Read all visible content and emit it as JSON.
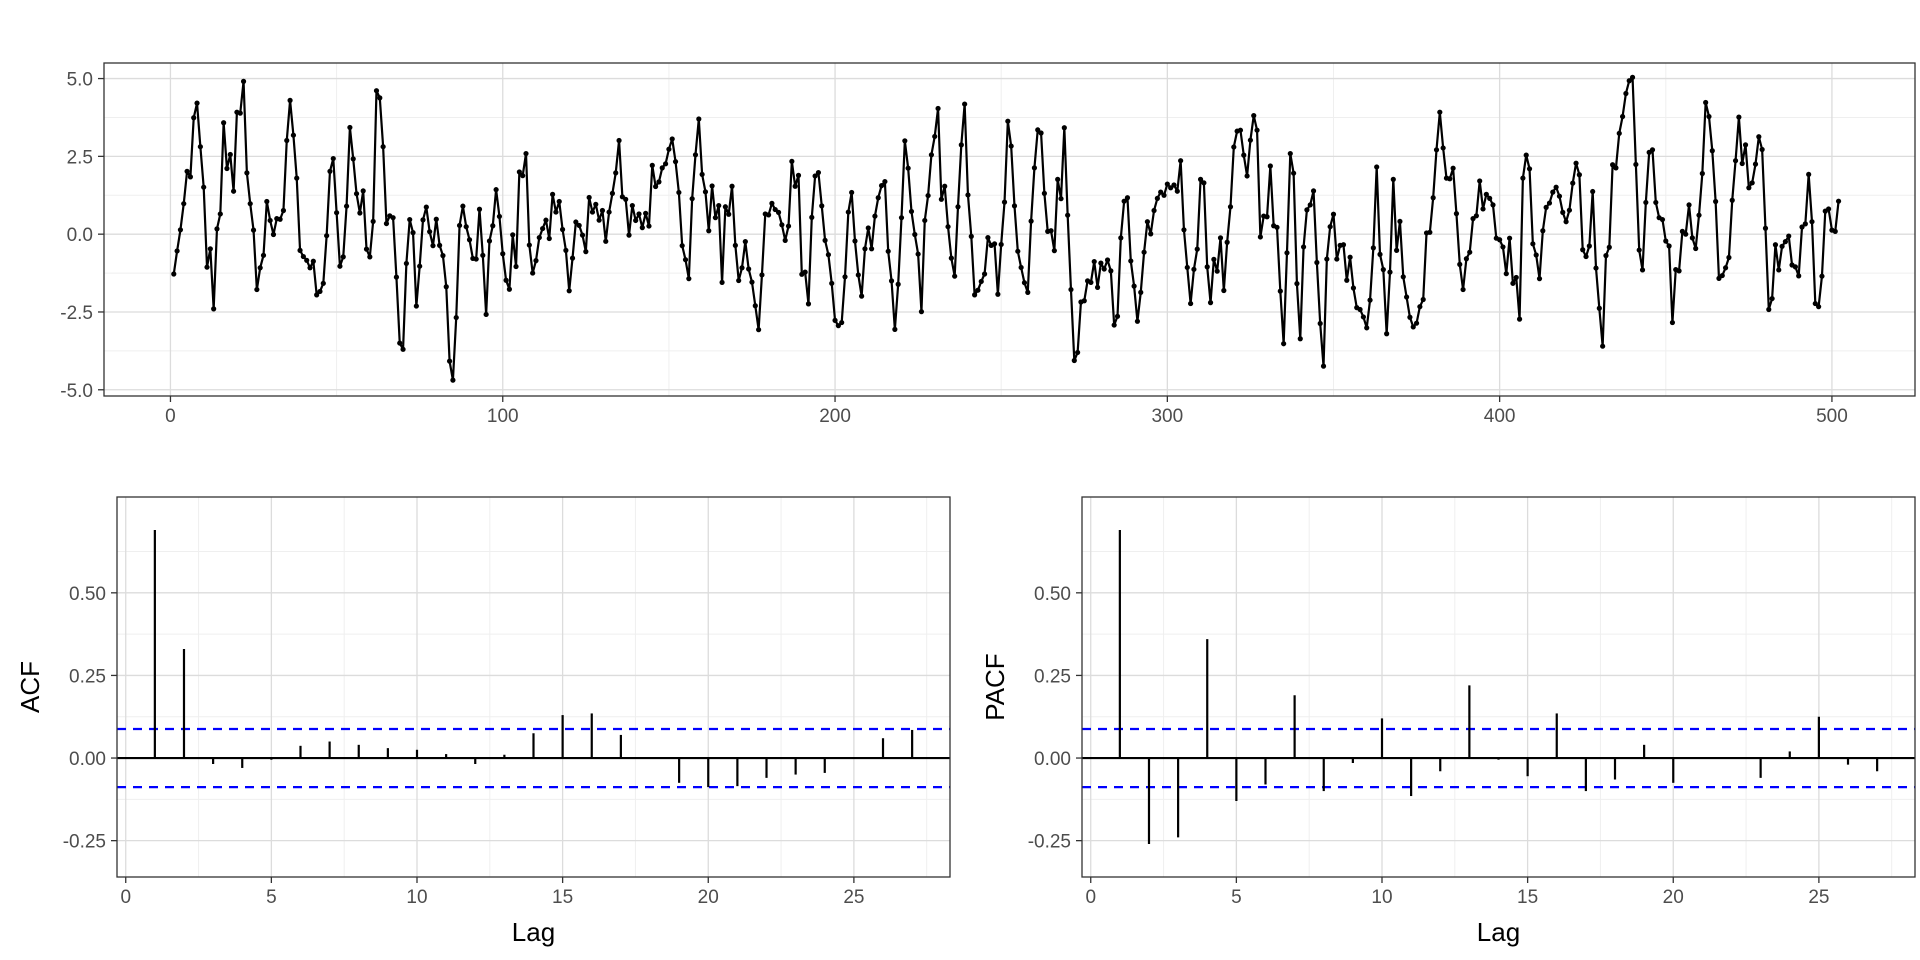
{
  "colors": {
    "grid_major": "#dcdcdc",
    "grid_minor": "#efefef",
    "line": "#000000",
    "ci": "#0000ff",
    "panel_border": "#333333"
  },
  "chart_data": [
    {
      "type": "line",
      "panel": "time-series",
      "title": "",
      "xlabel": "",
      "ylabel": "",
      "xlim": [
        -20,
        525
      ],
      "ylim": [
        -5.2,
        5.5
      ],
      "xticks": [
        "0",
        "100",
        "200",
        "300",
        "400",
        "500"
      ],
      "yticks": [
        "5.0",
        "2.5",
        "0.0",
        "-2.5",
        "-5.0"
      ],
      "grid": true,
      "markers": true,
      "x_start": 1,
      "x_step": 1,
      "y": [
        -1.28,
        -0.54,
        0.14,
        0.98,
        2.02,
        1.84,
        3.74,
        4.21,
        2.81,
        1.51,
        -1.06,
        -0.47,
        -2.4,
        0.17,
        0.65,
        3.58,
        2.11,
        2.56,
        1.38,
        3.92,
        3.89,
        4.91,
        1.97,
        0.98,
        0.13,
        -1.78,
        -1.08,
        -0.68,
        1.05,
        0.44,
        -0.01,
        0.5,
        0.48,
        0.76,
        3.01,
        4.3,
        3.18,
        1.8,
        -0.52,
        -0.72,
        -0.84,
        -1.08,
        -0.87,
        -1.95,
        -1.84,
        -1.58,
        -0.05,
        2.02,
        2.43,
        0.69,
        -1.03,
        -0.73,
        0.9,
        3.43,
        2.42,
        1.3,
        0.68,
        1.39,
        -0.48,
        -0.73,
        0.41,
        4.61,
        4.38,
        2.81,
        0.34,
        0.59,
        0.53,
        -1.38,
        -3.5,
        -3.7,
        -0.94,
        0.47,
        0.05,
        -2.31,
        -1.03,
        0.46,
        0.87,
        0.08,
        -0.37,
        0.48,
        -0.36,
        -0.69,
        -1.69,
        -4.08,
        -4.69,
        -2.68,
        0.28,
        0.9,
        0.24,
        -0.18,
        -0.78,
        -0.8,
        0.8,
        -0.68,
        -2.58,
        -0.22,
        0.27,
        1.43,
        0.57,
        -0.63,
        -1.48,
        -1.77,
        -0.02,
        -1.04,
        2.0,
        1.88,
        2.59,
        -0.35,
        -1.25,
        -0.85,
        -0.11,
        0.18,
        0.45,
        -0.14,
        1.28,
        0.71,
        1.05,
        0.15,
        -0.52,
        -1.82,
        -0.77,
        0.39,
        0.28,
        -0.03,
        -0.56,
        1.18,
        0.71,
        0.96,
        0.45,
        0.76,
        -0.23,
        0.71,
        1.31,
        1.97,
        3.01,
        1.2,
        1.12,
        -0.03,
        0.92,
        0.44,
        0.65,
        0.21,
        0.67,
        0.26,
        2.21,
        1.53,
        1.68,
        2.13,
        2.26,
        2.73,
        3.06,
        2.33,
        1.34,
        -0.37,
        -0.82,
        -1.43,
        1.14,
        2.55,
        3.7,
        1.92,
        1.36,
        0.11,
        1.55,
        0.53,
        0.92,
        -1.55,
        0.88,
        0.64,
        1.54,
        -0.36,
        -1.49,
        -1.08,
        -0.24,
        -1.12,
        -1.54,
        -2.3,
        -3.07,
        -1.31,
        0.65,
        0.62,
        0.99,
        0.79,
        0.7,
        0.3,
        -0.2,
        0.26,
        2.34,
        1.54,
        1.89,
        -1.29,
        -1.22,
        -2.24,
        0.54,
        1.87,
        1.98,
        0.91,
        -0.2,
        -0.66,
        -1.58,
        -2.77,
        -2.94,
        -2.84,
        -1.37,
        0.71,
        1.34,
        -0.22,
        -1.31,
        -1.99,
        -0.47,
        0.2,
        -0.47,
        0.58,
        1.17,
        1.56,
        1.69,
        -0.55,
        -1.5,
        -3.06,
        -1.61,
        0.53,
        3.0,
        2.12,
        0.73,
        -0.01,
        -0.64,
        -2.49,
        0.44,
        1.24,
        2.55,
        3.14,
        4.04,
        1.12,
        1.54,
        0.24,
        -0.77,
        -1.35,
        0.88,
        2.87,
        4.18,
        1.26,
        -0.07,
        -1.95,
        -1.8,
        -1.52,
        -1.28,
        -0.11,
        -0.36,
        -0.31,
        -1.93,
        -0.33,
        1.03,
        3.63,
        2.83,
        0.91,
        -0.55,
        -1.07,
        -1.56,
        -1.87,
        0.42,
        2.13,
        3.35,
        3.25,
        1.31,
        0.09,
        0.11,
        -0.53,
        1.76,
        1.14,
        3.42,
        0.61,
        -1.78,
        -4.06,
        -3.8,
        -2.18,
        -2.14,
        -1.5,
        -1.55,
        -0.88,
        -1.71,
        -0.93,
        -1.12,
        -0.83,
        -1.18,
        -2.92,
        -2.64,
        -0.12,
        1.06,
        1.17,
        -0.86,
        -1.67,
        -2.8,
        -1.87,
        -0.58,
        0.4,
        0.01,
        0.76,
        1.15,
        1.35,
        1.25,
        1.61,
        1.49,
        1.58,
        1.38,
        2.36,
        0.14,
        -1.07,
        -2.23,
        -1.13,
        -0.48,
        1.76,
        1.65,
        -1.05,
        -2.2,
        -0.81,
        -1.19,
        -0.12,
        -1.81,
        -0.26,
        0.88,
        2.8,
        3.31,
        3.34,
        2.54,
        1.87,
        3.02,
        3.81,
        3.34,
        -0.09,
        0.58,
        0.56,
        2.19,
        0.27,
        0.22,
        -1.83,
        -3.52,
        -0.6,
        2.59,
        1.96,
        -1.59,
        -3.36,
        -0.41,
        0.78,
        0.94,
        1.39,
        -0.91,
        -2.87,
        -4.24,
        -0.8,
        0.24,
        0.64,
        -0.8,
        -0.36,
        -0.34,
        -1.48,
        -0.74,
        -1.73,
        -2.36,
        -2.42,
        -2.66,
        -3.01,
        -2.12,
        -0.44,
        2.16,
        -0.65,
        -1.14,
        -3.2,
        -1.22,
        1.76,
        -0.52,
        0.41,
        -1.37,
        -2.02,
        -2.67,
        -2.98,
        -2.86,
        -2.33,
        -2.1,
        0.04,
        0.06,
        1.17,
        2.71,
        3.92,
        2.77,
        1.8,
        1.78,
        2.12,
        0.66,
        -0.97,
        -1.78,
        -0.79,
        -0.58,
        0.5,
        0.59,
        1.71,
        0.81,
        1.28,
        1.15,
        0.94,
        -0.13,
        -0.18,
        -0.41,
        -1.27,
        -0.13,
        -1.58,
        -1.39,
        -2.73,
        1.8,
        2.54,
        2.1,
        -0.31,
        -0.67,
        -1.43,
        0.11,
        0.86,
        1.0,
        1.35,
        1.51,
        1.22,
        0.7,
        0.4,
        0.77,
        1.64,
        2.28,
        1.91,
        -0.5,
        -0.72,
        -0.38,
        1.37,
        -1.09,
        -2.38,
        -3.6,
        -0.69,
        -0.42,
        2.23,
        2.13,
        3.24,
        3.78,
        4.52,
        4.93,
        5.04,
        2.24,
        -0.51,
        -1.15,
        1.02,
        2.63,
        2.71,
        1.02,
        0.53,
        0.47,
        -0.22,
        -0.38,
        -2.84,
        -1.14,
        -1.18,
        0.09,
        0.0,
        0.94,
        -0.12,
        -0.46,
        0.61,
        1.95,
        4.23,
        3.78,
        2.68,
        1.05,
        -1.42,
        -1.33,
        -1.08,
        -0.75,
        1.09,
        2.36,
        3.76,
        2.27,
        2.87,
        1.49,
        1.65,
        2.25,
        3.13,
        2.72,
        0.19,
        -2.42,
        -2.07,
        -0.34,
        -1.15,
        -0.39,
        -0.24,
        -0.06,
        -0.99,
        -1.05,
        -1.34,
        0.23,
        0.33,
        1.92,
        0.4,
        -2.23,
        -2.33,
        -1.35,
        0.74,
        0.81,
        0.13,
        0.09,
        1.06
      ]
    },
    {
      "type": "bar",
      "panel": "acf",
      "xlabel": "Lag",
      "ylabel": "ACF",
      "xlim": [
        -0.3,
        28.3
      ],
      "ylim": [
        -0.36,
        0.79
      ],
      "xticks": [
        "0",
        "5",
        "10",
        "15",
        "20",
        "25"
      ],
      "yticks": [
        "0.50",
        "0.25",
        "0.00",
        "-0.25"
      ],
      "grid": true,
      "lags": [
        1,
        2,
        3,
        4,
        5,
        6,
        7,
        8,
        9,
        10,
        11,
        12,
        13,
        14,
        15,
        16,
        17,
        18,
        19,
        20,
        21,
        22,
        23,
        24,
        25,
        26,
        27
      ],
      "values": [
        0.69,
        0.33,
        -0.018,
        -0.03,
        -0.005,
        0.037,
        0.05,
        0.04,
        0.03,
        0.025,
        0.012,
        -0.018,
        0.01,
        0.075,
        0.13,
        0.135,
        0.07,
        0.0,
        -0.075,
        -0.088,
        -0.085,
        -0.06,
        -0.05,
        -0.045,
        0.0,
        0.06,
        0.085
      ],
      "confidence_band": 0.088
    },
    {
      "type": "bar",
      "panel": "pacf",
      "xlabel": "Lag",
      "ylabel": "PACF",
      "xlim": [
        -0.3,
        28.3
      ],
      "ylim": [
        -0.36,
        0.79
      ],
      "xticks": [
        "0",
        "5",
        "10",
        "15",
        "20",
        "25"
      ],
      "yticks": [
        "0.50",
        "0.25",
        "0.00",
        "-0.25"
      ],
      "grid": true,
      "lags": [
        1,
        2,
        3,
        4,
        5,
        6,
        7,
        8,
        9,
        10,
        11,
        12,
        13,
        14,
        15,
        16,
        17,
        18,
        19,
        20,
        21,
        22,
        23,
        24,
        25,
        26,
        27
      ],
      "values": [
        0.69,
        -0.26,
        -0.24,
        0.36,
        -0.13,
        -0.08,
        0.19,
        -0.1,
        -0.015,
        0.12,
        -0.115,
        -0.04,
        0.22,
        -0.005,
        -0.055,
        0.135,
        -0.1,
        -0.065,
        0.04,
        -0.075,
        0.0,
        0.0,
        -0.06,
        0.02,
        0.125,
        -0.02,
        -0.04
      ],
      "confidence_band": 0.088
    }
  ]
}
